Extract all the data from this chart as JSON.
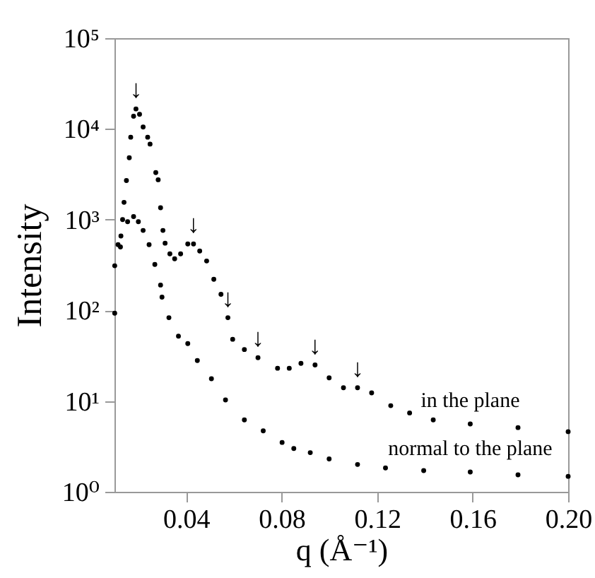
{
  "chart_data": {
    "type": "scatter",
    "xlabel": "q (Å⁻¹)",
    "ylabel": "Intensity",
    "log": "y",
    "marker": "circle",
    "xlim": [
      0.01,
      0.2
    ],
    "xticks": [
      0.04,
      0.08,
      0.12,
      0.16,
      {
        "value": 0.2,
        "label": "0.20"
      }
    ],
    "ylim": [
      1,
      100000
    ],
    "yticks": [
      {
        "value": 1,
        "label": "10⁰"
      },
      {
        "value": 10,
        "label": "10¹"
      },
      {
        "value": 100,
        "label": "10²"
      },
      {
        "value": 1000,
        "label": "10³"
      },
      {
        "value": 10000,
        "label": "10⁴"
      },
      {
        "value": 100000,
        "label": "10⁵"
      }
    ],
    "series": [
      {
        "name": "in the plane",
        "color": "#000000",
        "x": [
          0.0101,
          0.0125,
          0.014,
          0.015,
          0.0162,
          0.0168,
          0.018,
          0.019,
          0.0205,
          0.022,
          0.0239,
          0.0249,
          0.0273,
          0.0283,
          0.0293,
          0.0303,
          0.0312,
          0.0332,
          0.0352,
          0.0377,
          0.0407,
          0.0431,
          0.0457,
          0.0486,
          0.0516,
          0.0546,
          0.0575,
          0.0595,
          0.0644,
          0.0701,
          0.0783,
          0.0832,
          0.0881,
          0.094,
          0.0999,
          0.1059,
          0.1118,
          0.1177,
          0.1257,
          0.1336,
          0.1435,
          0.159,
          0.179,
          0.2
        ],
        "values": [
          93,
          500,
          1550,
          2700,
          4800,
          8100,
          13800,
          16600,
          14500,
          10500,
          8100,
          6800,
          3300,
          2750,
          1350,
          760,
          550,
          420,
          370,
          420,
          540,
          540,
          450,
          350,
          220,
          150,
          83,
          48,
          37,
          30,
          23,
          23,
          26,
          25,
          18,
          14,
          14,
          12.3,
          8.9,
          7.4,
          6.2,
          5.6,
          5.1,
          4.6
        ]
      },
      {
        "name": "normal to the plane",
        "color": "#000000",
        "x": [
          0.0101,
          0.0115,
          0.0127,
          0.0134,
          0.0155,
          0.018,
          0.02,
          0.022,
          0.0245,
          0.0269,
          0.0293,
          0.0299,
          0.0328,
          0.0368,
          0.0407,
          0.0447,
          0.0506,
          0.0565,
          0.0644,
          0.0723,
          0.0802,
          0.0851,
          0.092,
          0.0999,
          0.1118,
          0.1235,
          0.1395,
          0.159,
          0.179,
          0.2
        ],
        "values": [
          310,
          530,
          660,
          1000,
          950,
          1080,
          950,
          760,
          530,
          320,
          190,
          140,
          83,
          52,
          43,
          28,
          17.6,
          10.3,
          6.2,
          4.7,
          3.5,
          3.0,
          2.7,
          2.3,
          2.0,
          1.83,
          1.71,
          1.65,
          1.54,
          1.48
        ]
      }
    ],
    "annotations": [
      {
        "text": "↓",
        "x": 0.019,
        "y": 16600
      },
      {
        "text": "↓",
        "x": 0.0431,
        "y": 540
      },
      {
        "text": "↓",
        "x": 0.0575,
        "y": 83
      },
      {
        "text": "↓",
        "x": 0.0701,
        "y": 30
      },
      {
        "text": "↓",
        "x": 0.094,
        "y": 25
      },
      {
        "text": "↓",
        "x": 0.1118,
        "y": 14
      }
    ]
  }
}
